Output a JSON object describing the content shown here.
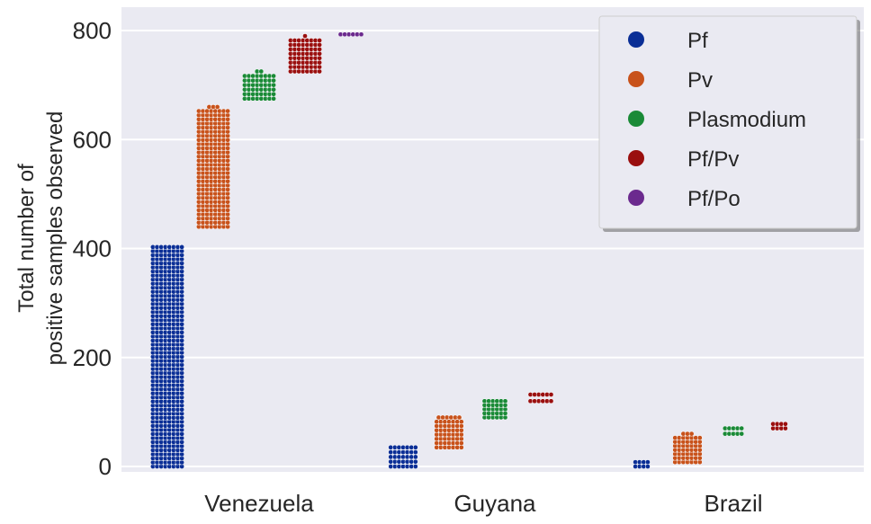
{
  "chart_data": {
    "type": "scatter",
    "subtype": "stacked-swarm",
    "categories": [
      "Venezuela",
      "Guyana",
      "Brazil"
    ],
    "ylabel_lines": [
      "Total number of",
      "positive samples observed"
    ],
    "ylim": [
      0,
      850
    ],
    "yticks": [
      0,
      200,
      400,
      600,
      800
    ],
    "grid": true,
    "legend_position": "top-right",
    "series": [
      {
        "name": "Pf",
        "color": "#0a2e96",
        "counts": [
          440,
          35,
          8
        ]
      },
      {
        "name": "Pv",
        "color": "#c8521b",
        "counts": [
          235,
          55,
          52
        ]
      },
      {
        "name": "Plasmodium",
        "color": "#1a8a37",
        "counts": [
          50,
          30,
          10
        ]
      },
      {
        "name": "Pf/Pv",
        "color": "#9a0f0f",
        "counts": [
          65,
          12,
          8
        ]
      },
      {
        "name": "Pf/Po",
        "color": "#6b2a8e",
        "counts": [
          6,
          0,
          0
        ]
      }
    ]
  }
}
